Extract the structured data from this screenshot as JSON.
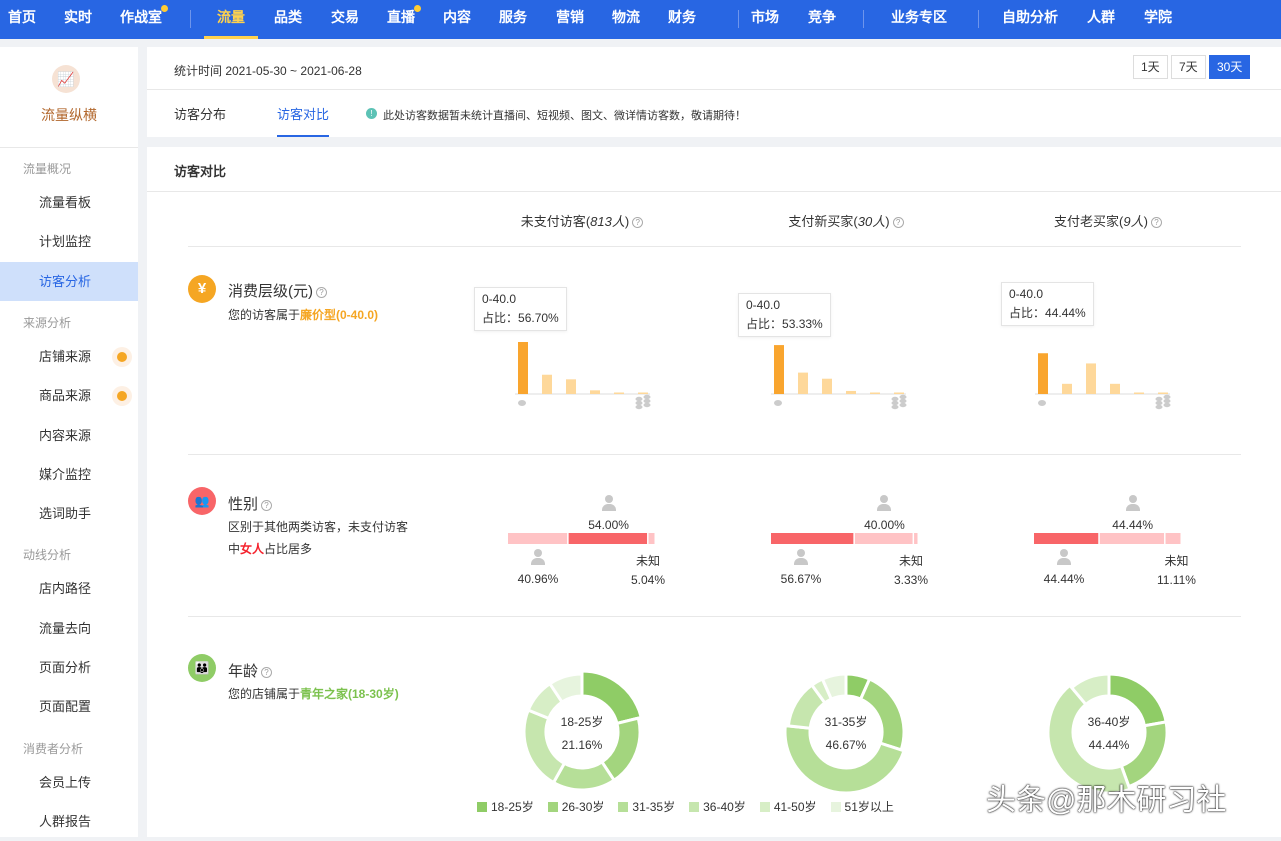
{
  "nav": {
    "items": [
      {
        "label": "首页",
        "dot": false
      },
      {
        "label": "实时",
        "dot": false
      },
      {
        "label": "作战室",
        "dot": true
      },
      {
        "label": "流量",
        "dot": false,
        "active": true
      },
      {
        "label": "品类",
        "dot": false
      },
      {
        "label": "交易",
        "dot": false
      },
      {
        "label": "直播",
        "dot": true
      },
      {
        "label": "内容",
        "dot": false
      },
      {
        "label": "服务",
        "dot": false
      },
      {
        "label": "营销",
        "dot": false
      },
      {
        "label": "物流",
        "dot": false
      },
      {
        "label": "财务",
        "dot": false
      },
      {
        "label": "市场",
        "dot": false
      },
      {
        "label": "竞争",
        "dot": false
      },
      {
        "label": "业务专区",
        "dot": false
      },
      {
        "label": "自助分析",
        "dot": false
      },
      {
        "label": "人群",
        "dot": false
      },
      {
        "label": "学院",
        "dot": false
      }
    ]
  },
  "sidebar": {
    "title": "流量纵横",
    "groups": [
      {
        "label": "流量概况",
        "items": [
          {
            "label": "流量看板"
          },
          {
            "label": "计划监控"
          },
          {
            "label": "访客分析",
            "active": true
          }
        ]
      },
      {
        "label": "来源分析",
        "items": [
          {
            "label": "店铺来源",
            "dot": true
          },
          {
            "label": "商品来源",
            "dot": true
          },
          {
            "label": "内容来源"
          },
          {
            "label": "媒介监控"
          },
          {
            "label": "选词助手"
          }
        ]
      },
      {
        "label": "动线分析",
        "items": [
          {
            "label": "店内路径"
          },
          {
            "label": "流量去向"
          },
          {
            "label": "页面分析"
          },
          {
            "label": "页面配置"
          }
        ]
      },
      {
        "label": "消费者分析",
        "items": [
          {
            "label": "会员上传"
          },
          {
            "label": "人群报告"
          }
        ]
      }
    ]
  },
  "header": {
    "date_range": "统计时间 2021-05-30 ~ 2021-06-28",
    "ranges": [
      "1天",
      "7天",
      "30天"
    ],
    "active_range": "30天",
    "tabs": [
      "访客分布",
      "访客对比"
    ],
    "notice": "此处访客数据暂未统计直播间、短视频、图文、微详情访客数，敬请期待！"
  },
  "card": {
    "title": "访客对比",
    "columns": [
      {
        "label": "未支付访客",
        "count": "813人"
      },
      {
        "label": "支付新买家",
        "count": "30人"
      },
      {
        "label": "支付老买家",
        "count": "9人"
      }
    ],
    "spend": {
      "title": "消费层级(元)",
      "desc_prefix": "您的访客属于",
      "desc_highlight": "廉价型(0-40.0)",
      "tooltip_label": "0-40.0",
      "tooltip_prefix": "占比：",
      "tooltips": [
        "56.70%",
        "53.33%",
        "44.44%"
      ]
    },
    "gender": {
      "title": "性别",
      "desc_1": "区别于其他两类访客，未支付访客",
      "desc_2_prefix": "中",
      "desc_2_highlight": "女人",
      "desc_2_suffix": "占比居多",
      "unknown_label": "未知",
      "values": [
        {
          "male": "40.96%",
          "female": "54.00%",
          "unknown": "5.04%"
        },
        {
          "male": "56.67%",
          "female": "40.00%",
          "unknown": "3.33%"
        },
        {
          "male": "44.44%",
          "female": "44.44%",
          "unknown": "11.11%"
        }
      ]
    },
    "age": {
      "title": "年龄",
      "desc_prefix": "您的店铺属于",
      "desc_highlight": "青年之家(18-30岁)",
      "centers": [
        {
          "label": "18-25岁",
          "value": "21.16%"
        },
        {
          "label": "31-35岁",
          "value": "46.67%"
        },
        {
          "label": "36-40岁",
          "value": "44.44%"
        }
      ],
      "legend": [
        "18-25岁",
        "26-30岁",
        "31-35岁",
        "36-40岁",
        "41-50岁",
        "51岁以上"
      ]
    }
  },
  "watermark": "头条@那木研习社",
  "colors": {
    "nav": "#2866e3",
    "accent_orange": "#f5a623",
    "male_female_dark": "#f86568",
    "light_pink": "#ffc3c5",
    "green_dark": "#8fcc66"
  },
  "chart_data": [
    {
      "type": "bar",
      "title": "消费层级(元) - 未支付访客",
      "categories": [
        "1",
        "2",
        "3",
        "4",
        "5",
        "6"
      ],
      "values": [
        56.7,
        21,
        16,
        4,
        1,
        1
      ]
    },
    {
      "type": "bar",
      "title": "消费层级(元) - 支付新买家",
      "categories": [
        "1",
        "2",
        "3",
        "4",
        "5",
        "6"
      ],
      "values": [
        53.33,
        23.33,
        16.67,
        3.33,
        1.5,
        1.5
      ]
    },
    {
      "type": "bar",
      "title": "消费层级(元) - 支付老买家",
      "categories": [
        "1",
        "2",
        "3",
        "4",
        "5",
        "6"
      ],
      "values": [
        44.44,
        11.11,
        33.33,
        11.11,
        0,
        0
      ]
    },
    {
      "type": "pie",
      "categories": [
        "18-25岁",
        "26-30岁",
        "31-35岁",
        "36-40岁",
        "41-50岁",
        "51岁以上"
      ],
      "values": [
        21.16,
        19.5,
        17.5,
        23,
        9.5,
        9.34
      ]
    },
    {
      "type": "pie",
      "categories": [
        "18-25岁",
        "26-30岁",
        "31-35岁",
        "36-40岁",
        "41-50岁",
        "51岁以上"
      ],
      "values": [
        6.67,
        23.33,
        46.67,
        13.33,
        3.33,
        6.67
      ]
    },
    {
      "type": "pie",
      "categories": [
        "18-25岁",
        "26-30岁",
        "31-35岁",
        "36-40岁",
        "41-50岁",
        "51岁以上"
      ],
      "values": [
        22.22,
        22.22,
        0,
        44.44,
        11.12,
        0
      ]
    }
  ]
}
